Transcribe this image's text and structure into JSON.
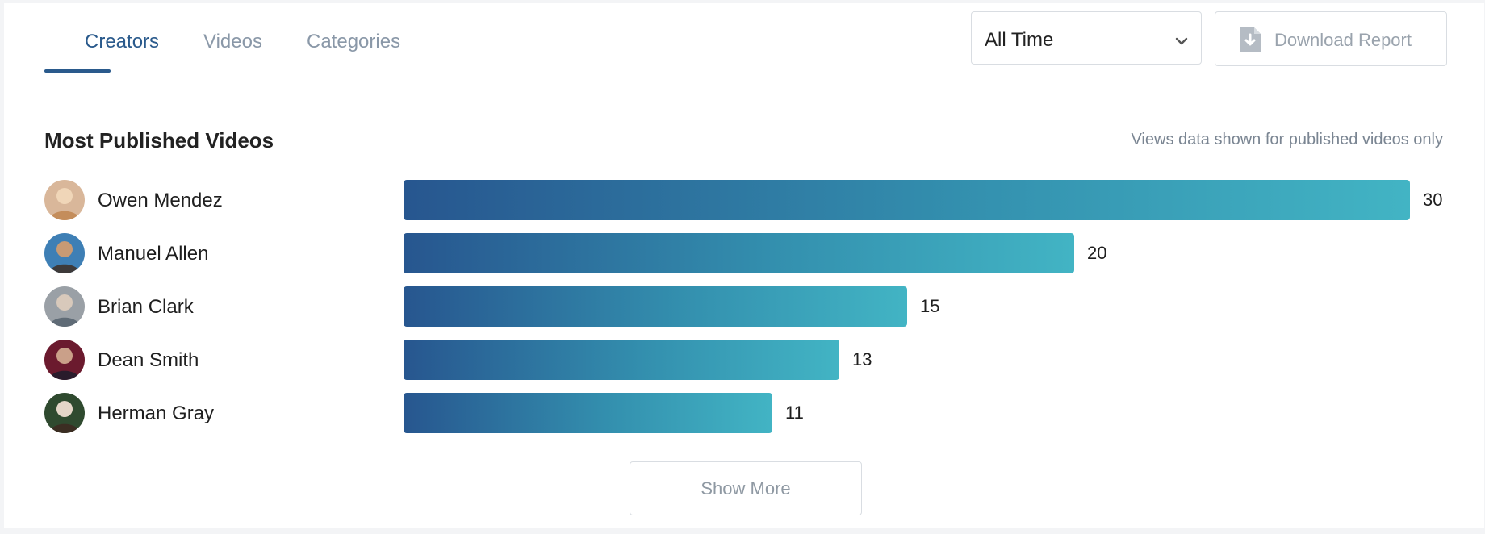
{
  "tabs": [
    {
      "label": "Creators",
      "active": true
    },
    {
      "label": "Videos",
      "active": false
    },
    {
      "label": "Categories",
      "active": false
    }
  ],
  "timeframe_select": {
    "value": "All Time",
    "icon": "chevron-down-icon"
  },
  "download_button": {
    "label": "Download Report",
    "icon": "download-file-icon"
  },
  "section": {
    "title": "Most Published Videos",
    "note": "Views data shown for published videos only"
  },
  "chart_data": {
    "type": "bar",
    "orientation": "horizontal",
    "categories": [
      "Owen Mendez",
      "Manuel Allen",
      "Brian Clark",
      "Dean Smith",
      "Herman Gray"
    ],
    "values": [
      30,
      20,
      15,
      13,
      11
    ],
    "title": "Most Published Videos",
    "max": 30
  },
  "rows": [
    {
      "name": "Owen Mendez",
      "value": "30",
      "avatar": "avatar-photo"
    },
    {
      "name": "Manuel Allen",
      "value": "20",
      "avatar": "avatar-photo"
    },
    {
      "name": "Brian Clark",
      "value": "15",
      "avatar": "avatar-photo"
    },
    {
      "name": "Dean Smith",
      "value": "13",
      "avatar": "avatar-photo"
    },
    {
      "name": "Herman Gray",
      "value": "11",
      "avatar": "avatar-photo"
    }
  ],
  "show_more_label": "Show More",
  "colors": {
    "accent": "#2a5a8c",
    "bar_start": "#27568f",
    "bar_end": "#42b4c4",
    "muted": "#8a98a8"
  }
}
